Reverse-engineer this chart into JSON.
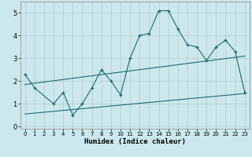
{
  "title": "",
  "xlabel": "Humidex (Indice chaleur)",
  "bg_color": "#cce8ee",
  "grid_color": "#b0cccc",
  "line_color": "#1a6b6b",
  "line1_x": [
    0,
    1,
    3,
    4,
    5,
    6,
    7,
    8,
    9,
    10,
    11,
    12,
    13,
    14,
    15,
    16,
    17,
    18,
    19,
    20,
    21,
    22,
    23
  ],
  "line1_y": [
    2.3,
    1.7,
    1.0,
    1.5,
    0.5,
    1.0,
    1.7,
    2.5,
    2.0,
    1.4,
    3.0,
    4.0,
    4.1,
    5.1,
    5.1,
    4.3,
    3.6,
    3.5,
    2.9,
    3.5,
    3.8,
    3.3,
    1.5
  ],
  "line2_x": [
    0,
    23
  ],
  "line2_y": [
    1.85,
    3.1
  ],
  "line3_x": [
    0,
    23
  ],
  "line3_y": [
    0.55,
    1.45
  ],
  "ylim": [
    -0.1,
    5.5
  ],
  "xlim": [
    -0.5,
    23.5
  ],
  "yticks": [
    0,
    1,
    2,
    3,
    4,
    5
  ],
  "xticks": [
    0,
    1,
    2,
    3,
    4,
    5,
    6,
    7,
    8,
    9,
    10,
    11,
    12,
    13,
    14,
    15,
    16,
    17,
    18,
    19,
    20,
    21,
    22,
    23
  ]
}
